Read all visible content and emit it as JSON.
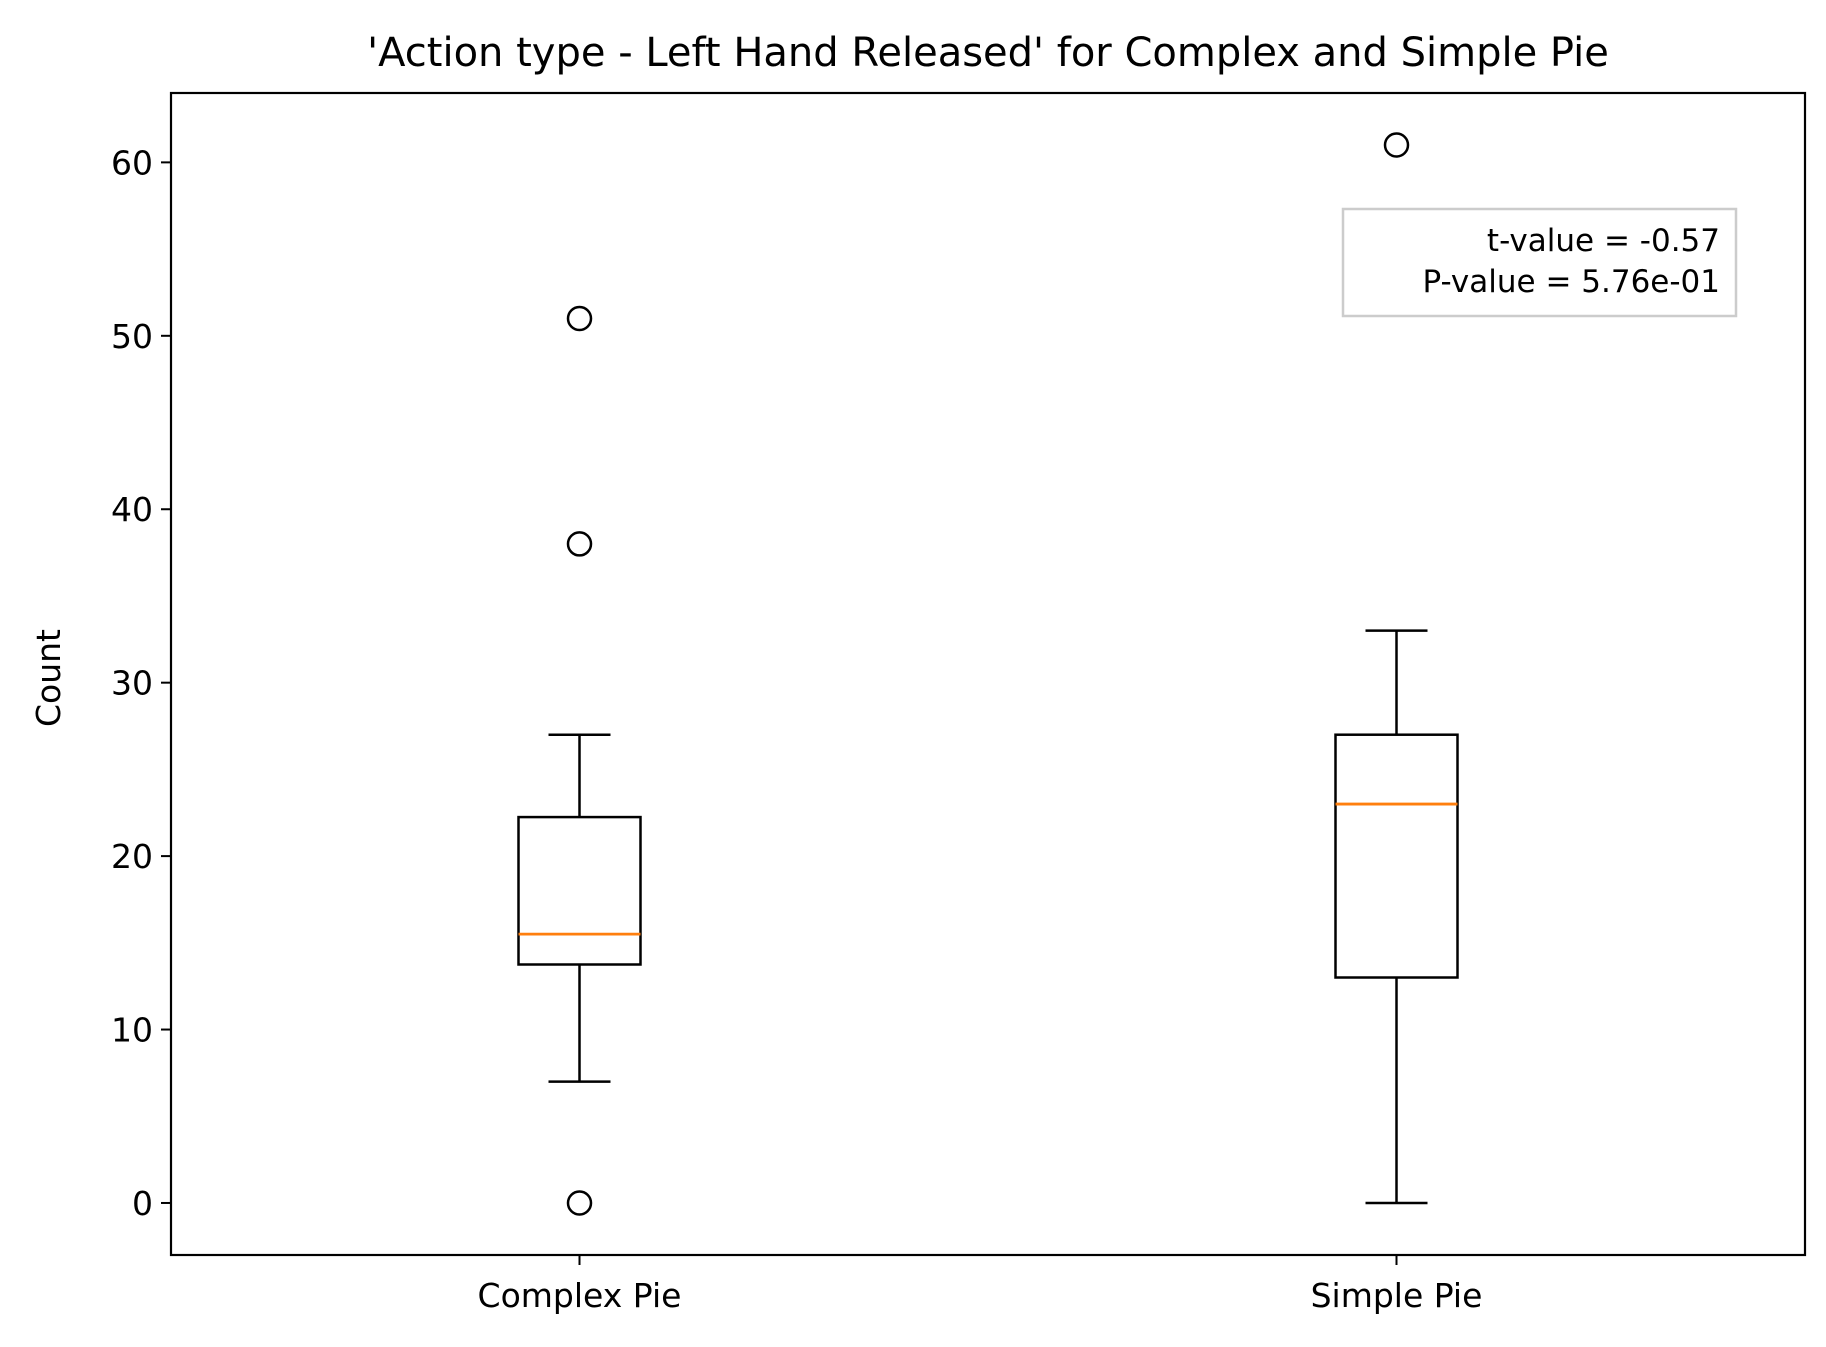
{
  "chart_data": {
    "type": "box",
    "title": "'Action type - Left Hand Released' for Complex and Simple Pie",
    "xlabel": "",
    "ylabel": "Count",
    "categories": [
      "Complex Pie",
      "Simple Pie"
    ],
    "ylim": [
      -3,
      64
    ],
    "yticks": [
      0,
      10,
      20,
      30,
      40,
      50,
      60
    ],
    "grid": false,
    "boxes": [
      {
        "category": "Complex Pie",
        "whisker_low": 7,
        "q1": 13.75,
        "median": 15.5,
        "q3": 22.25,
        "whisker_high": 27,
        "outliers": [
          0,
          38,
          51
        ]
      },
      {
        "category": "Simple Pie",
        "whisker_low": 0,
        "q1": 13,
        "median": 23,
        "q3": 27,
        "whisker_high": 33,
        "outliers": [
          61
        ]
      }
    ],
    "annotation": {
      "lines": [
        "t-value = -0.57",
        "P-value = 5.76e-01"
      ],
      "placement": "top-right"
    },
    "colors": {
      "box": "#000000",
      "median": "#ff7f0e",
      "annotation_border": "#cccccc"
    }
  }
}
